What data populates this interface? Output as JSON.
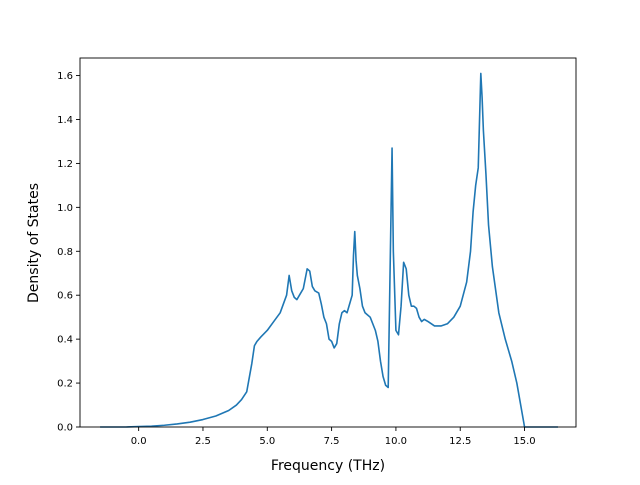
{
  "chart_data": {
    "type": "line",
    "title": "",
    "xlabel": "Frequency (THz)",
    "ylabel": "Density of States",
    "xlim": [
      -2.28,
      17.0
    ],
    "ylim": [
      0.0,
      1.68
    ],
    "xticks": [
      "0.0",
      "2.5",
      "5.0",
      "7.5",
      "10.0",
      "12.5",
      "15.0"
    ],
    "xtick_values": [
      0,
      2.5,
      5,
      7.5,
      10,
      12.5,
      15
    ],
    "yticks": [
      "0.0",
      "0.2",
      "0.4",
      "0.6",
      "0.8",
      "1.0",
      "1.2",
      "1.4",
      "1.6"
    ],
    "ytick_values": [
      0,
      0.2,
      0.4,
      0.6,
      0.8,
      1.0,
      1.2,
      1.4,
      1.6
    ],
    "grid": false,
    "line_color": "#1f77b4",
    "series": [
      {
        "x": [
          -1.5,
          -0.5,
          0.0,
          0.5,
          1.0,
          1.5,
          2.0,
          2.5,
          3.0,
          3.5,
          3.8,
          4.0,
          4.2,
          4.4,
          4.5,
          4.6,
          4.75,
          5.0,
          5.25,
          5.5,
          5.75,
          5.85,
          5.95,
          6.05,
          6.15,
          6.25,
          6.4,
          6.55,
          6.65,
          6.75,
          6.85,
          7.0,
          7.1,
          7.2,
          7.3,
          7.4,
          7.5,
          7.6,
          7.7,
          7.8,
          7.9,
          8.0,
          8.1,
          8.2,
          8.3,
          8.35,
          8.4,
          8.45,
          8.5,
          8.6,
          8.7,
          8.8,
          8.9,
          9.0,
          9.1,
          9.2,
          9.3,
          9.4,
          9.5,
          9.6,
          9.7,
          9.85,
          9.9,
          10.0,
          10.1,
          10.2,
          10.3,
          10.4,
          10.5,
          10.6,
          10.7,
          10.8,
          10.9,
          11.0,
          11.1,
          11.25,
          11.5,
          11.75,
          12.0,
          12.25,
          12.5,
          12.75,
          12.9,
          13.0,
          13.1,
          13.2,
          13.3,
          13.35,
          13.4,
          13.5,
          13.6,
          13.75,
          14.0,
          14.25,
          14.5,
          14.7,
          14.85,
          15.0,
          15.5,
          16.3
        ],
        "y": [
          0.0,
          0.0,
          0.002,
          0.004,
          0.008,
          0.014,
          0.022,
          0.034,
          0.05,
          0.075,
          0.1,
          0.125,
          0.16,
          0.29,
          0.37,
          0.39,
          0.41,
          0.44,
          0.48,
          0.52,
          0.6,
          0.69,
          0.62,
          0.59,
          0.58,
          0.6,
          0.63,
          0.72,
          0.71,
          0.64,
          0.62,
          0.61,
          0.56,
          0.5,
          0.47,
          0.4,
          0.39,
          0.36,
          0.38,
          0.47,
          0.52,
          0.53,
          0.52,
          0.56,
          0.6,
          0.78,
          0.89,
          0.76,
          0.69,
          0.63,
          0.55,
          0.52,
          0.51,
          0.5,
          0.47,
          0.44,
          0.39,
          0.3,
          0.23,
          0.19,
          0.18,
          1.27,
          0.8,
          0.44,
          0.42,
          0.55,
          0.75,
          0.72,
          0.6,
          0.55,
          0.55,
          0.54,
          0.5,
          0.48,
          0.49,
          0.48,
          0.46,
          0.46,
          0.47,
          0.5,
          0.55,
          0.66,
          0.8,
          0.98,
          1.1,
          1.18,
          1.61,
          1.5,
          1.35,
          1.15,
          0.92,
          0.73,
          0.52,
          0.4,
          0.3,
          0.2,
          0.1,
          0.0,
          0.0,
          0.0
        ]
      }
    ]
  }
}
